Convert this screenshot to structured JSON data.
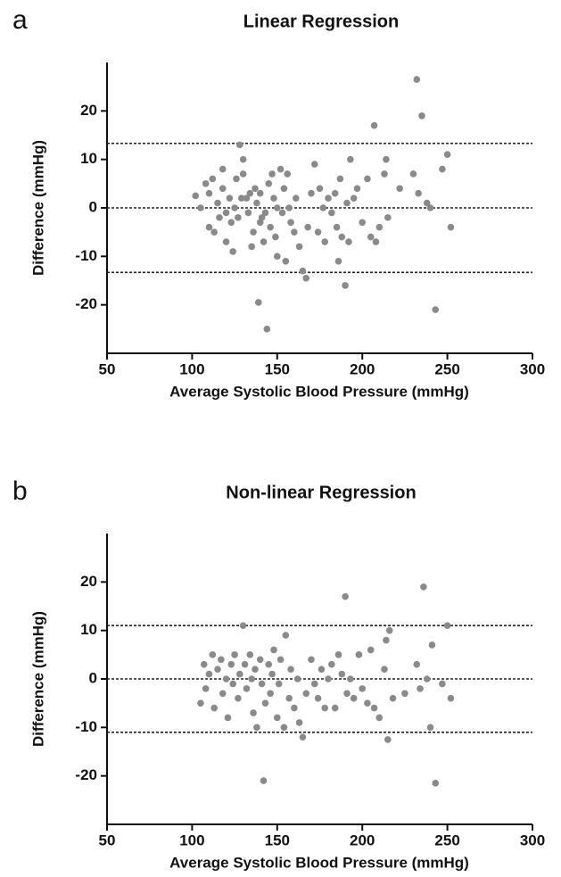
{
  "chart_data": [
    {
      "type": "scatter",
      "panel_label": "a",
      "title": "Linear Regression",
      "x_label": "Average Systolic Blood Pressure (mmHg)",
      "y_label": "Difference (mmHg)",
      "xlim": [
        50,
        300
      ],
      "xticks": [
        50,
        100,
        150,
        200,
        250,
        300
      ],
      "ylim": [
        -30,
        30
      ],
      "yticks": [
        -20,
        -10,
        0,
        10,
        20
      ],
      "hlines": [
        13.3,
        0,
        -13.3
      ],
      "marker_color": "#8a8a8a",
      "x": [
        102,
        105,
        108,
        110,
        110,
        112,
        113,
        115,
        116,
        118,
        118,
        120,
        120,
        122,
        123,
        124,
        125,
        126,
        127,
        128,
        129,
        130,
        130,
        132,
        133,
        134,
        135,
        136,
        137,
        138,
        139,
        140,
        140,
        141,
        142,
        143,
        144,
        145,
        146,
        147,
        148,
        149,
        150,
        150,
        152,
        153,
        154,
        155,
        156,
        157,
        158,
        160,
        161,
        163,
        165,
        167,
        168,
        170,
        172,
        174,
        175,
        177,
        178,
        180,
        182,
        184,
        185,
        186,
        187,
        188,
        190,
        191,
        192,
        193,
        195,
        197,
        200,
        203,
        205,
        207,
        208,
        210,
        213,
        214,
        215,
        222,
        230,
        232,
        233,
        235,
        238,
        240,
        243,
        247,
        250,
        252
      ],
      "values": [
        2.5,
        0,
        5,
        -4,
        3,
        6,
        -5,
        1,
        -2,
        8,
        4,
        -1,
        -7,
        2,
        -3,
        -9,
        0,
        6,
        -2,
        13,
        2,
        10,
        7,
        2,
        -1,
        3,
        -8,
        -5,
        4,
        1,
        -19.5,
        -3,
        3,
        -2,
        -7,
        -1,
        -25,
        5,
        -4,
        7,
        2,
        -6,
        -10,
        0,
        8,
        -1,
        4,
        -11,
        7,
        0,
        -3,
        -5,
        2,
        -8,
        -13,
        -14.5,
        -4,
        3,
        9,
        -5,
        4,
        0,
        -7,
        2,
        -1,
        3,
        -4,
        -11,
        6,
        -6,
        -16,
        1,
        -7,
        10,
        2,
        4,
        -3,
        6,
        -6,
        17,
        -7,
        -4,
        7,
        10,
        -2,
        4,
        7,
        26.5,
        3,
        19,
        1,
        0,
        -21,
        8,
        11,
        -4
      ]
    },
    {
      "type": "scatter",
      "panel_label": "b",
      "title": "Non-linear Regression",
      "x_label": "Average Systolic Blood Pressure (mmHg)",
      "y_label": "Difference (mmHg)",
      "xlim": [
        50,
        300
      ],
      "xticks": [
        50,
        100,
        150,
        200,
        250,
        300
      ],
      "ylim": [
        -30,
        30
      ],
      "yticks": [
        -20,
        -10,
        0,
        10,
        20
      ],
      "hlines": [
        11,
        0,
        -11
      ],
      "marker_color": "#8a8a8a",
      "x": [
        105,
        107,
        108,
        110,
        112,
        113,
        115,
        117,
        118,
        120,
        121,
        123,
        124,
        125,
        127,
        128,
        130,
        131,
        132,
        134,
        135,
        136,
        137,
        138,
        140,
        141,
        142,
        143,
        145,
        146,
        147,
        148,
        150,
        151,
        152,
        154,
        155,
        157,
        158,
        160,
        162,
        163,
        165,
        167,
        170,
        172,
        174,
        176,
        178,
        180,
        182,
        184,
        186,
        188,
        190,
        191,
        193,
        195,
        198,
        200,
        203,
        205,
        207,
        210,
        213,
        214,
        215,
        216,
        218,
        225,
        232,
        234,
        236,
        238,
        240,
        241,
        243,
        247,
        250,
        252
      ],
      "values": [
        -5,
        3,
        -2,
        1,
        5,
        -6,
        2,
        4,
        -3,
        0,
        -8,
        3,
        -1,
        5,
        -4,
        1,
        11,
        3,
        -2,
        5,
        0,
        -7,
        2,
        -10,
        4,
        -1,
        -21,
        -5,
        3,
        -3,
        1,
        6,
        -8,
        -1,
        4,
        -10,
        9,
        -4,
        2,
        -6,
        0,
        -9,
        -12,
        -3,
        4,
        -1,
        -4,
        2,
        -6,
        0,
        3,
        -6,
        5,
        1,
        17,
        -3,
        0,
        -4,
        5,
        -2,
        -5,
        6,
        -6,
        -8,
        2,
        8,
        -12.5,
        10,
        -4,
        -3,
        3,
        -2,
        19,
        0,
        -10,
        7,
        -21.5,
        -1,
        11,
        -4
      ]
    }
  ]
}
